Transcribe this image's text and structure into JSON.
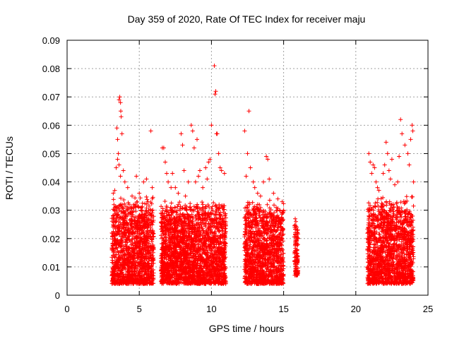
{
  "chart_data": {
    "type": "scatter",
    "title": "Day 359 of 2020, Rate Of TEC Index for receiver maju",
    "xlabel": "GPS time / hours",
    "ylabel": "ROTI / TECUs",
    "xlim": [
      0,
      25
    ],
    "ylim": [
      0,
      0.09
    ],
    "xticks": [
      0,
      5,
      10,
      15,
      20,
      25
    ],
    "xtick_labels": [
      "0",
      "5",
      "10",
      "15",
      "20",
      "25"
    ],
    "yticks": [
      0,
      0.01,
      0.02,
      0.03,
      0.04,
      0.05,
      0.06,
      0.07,
      0.08,
      0.09
    ],
    "ytick_labels": [
      "0",
      "0.01",
      "0.02",
      "0.03",
      "0.04",
      "0.05",
      "0.06",
      "0.07",
      "0.08",
      "0.09"
    ],
    "grid": true,
    "marker": "plus",
    "marker_color": "#ff0000",
    "series": [
      {
        "name": "ROTI",
        "points": [
          [
            3.2,
            0.036
          ],
          [
            3.3,
            0.037
          ],
          [
            3.4,
            0.045
          ],
          [
            3.45,
            0.059
          ],
          [
            3.5,
            0.055
          ],
          [
            3.55,
            0.05
          ],
          [
            3.6,
            0.069
          ],
          [
            3.65,
            0.07
          ],
          [
            3.7,
            0.068
          ],
          [
            3.72,
            0.065
          ],
          [
            3.75,
            0.063
          ],
          [
            3.8,
            0.057
          ],
          [
            3.5,
            0.048
          ],
          [
            3.6,
            0.046
          ],
          [
            3.7,
            0.042
          ],
          [
            3.9,
            0.044
          ],
          [
            4.0,
            0.04
          ],
          [
            4.2,
            0.038
          ],
          [
            4.5,
            0.035
          ],
          [
            4.8,
            0.042
          ],
          [
            5.0,
            0.036
          ],
          [
            5.3,
            0.04
          ],
          [
            5.5,
            0.041
          ],
          [
            5.6,
            0.033
          ],
          [
            5.8,
            0.058
          ],
          [
            5.9,
            0.038
          ],
          [
            3.3,
            0.03
          ],
          [
            3.8,
            0.032
          ],
          [
            4.4,
            0.031
          ],
          [
            5.2,
            0.03
          ],
          [
            6.6,
            0.052
          ],
          [
            6.7,
            0.052
          ],
          [
            6.8,
            0.047
          ],
          [
            6.9,
            0.043
          ],
          [
            7.0,
            0.04
          ],
          [
            7.2,
            0.038
          ],
          [
            7.5,
            0.038
          ],
          [
            7.7,
            0.036
          ],
          [
            7.9,
            0.057
          ],
          [
            8.0,
            0.053
          ],
          [
            8.2,
            0.035
          ],
          [
            8.4,
            0.04
          ],
          [
            8.6,
            0.06
          ],
          [
            8.7,
            0.058
          ],
          [
            8.8,
            0.052
          ],
          [
            9.0,
            0.055
          ],
          [
            9.2,
            0.044
          ],
          [
            9.4,
            0.038
          ],
          [
            9.6,
            0.045
          ],
          [
            9.8,
            0.047
          ],
          [
            9.9,
            0.048
          ],
          [
            10.0,
            0.06
          ],
          [
            10.2,
            0.081
          ],
          [
            10.25,
            0.071
          ],
          [
            10.3,
            0.072
          ],
          [
            10.35,
            0.057
          ],
          [
            10.4,
            0.057
          ],
          [
            10.5,
            0.05
          ],
          [
            10.6,
            0.045
          ],
          [
            10.7,
            0.044
          ],
          [
            10.9,
            0.043
          ],
          [
            7.3,
            0.043
          ],
          [
            8.1,
            0.044
          ],
          [
            9.1,
            0.042
          ],
          [
            9.7,
            0.041
          ],
          [
            8.9,
            0.04
          ],
          [
            12.3,
            0.058
          ],
          [
            12.5,
            0.05
          ],
          [
            12.6,
            0.065
          ],
          [
            12.7,
            0.045
          ],
          [
            12.9,
            0.04
          ],
          [
            13.2,
            0.036
          ],
          [
            13.4,
            0.035
          ],
          [
            13.6,
            0.04
          ],
          [
            13.8,
            0.049
          ],
          [
            13.9,
            0.048
          ],
          [
            14.0,
            0.041
          ],
          [
            14.3,
            0.036
          ],
          [
            14.6,
            0.034
          ],
          [
            14.9,
            0.033
          ],
          [
            15.0,
            0.03
          ],
          [
            12.4,
            0.042
          ],
          [
            13.0,
            0.038
          ],
          [
            15.8,
            0.027
          ],
          [
            15.85,
            0.026
          ],
          [
            15.9,
            0.024
          ],
          [
            15.95,
            0.022
          ],
          [
            15.8,
            0.018
          ],
          [
            15.9,
            0.014
          ],
          [
            15.85,
            0.01
          ],
          [
            15.9,
            0.008
          ],
          [
            15.95,
            0.012
          ],
          [
            20.9,
            0.05
          ],
          [
            21.0,
            0.047
          ],
          [
            21.1,
            0.043
          ],
          [
            21.2,
            0.046
          ],
          [
            21.3,
            0.045
          ],
          [
            21.4,
            0.04
          ],
          [
            21.6,
            0.037
          ],
          [
            21.9,
            0.043
          ],
          [
            22.0,
            0.046
          ],
          [
            22.1,
            0.054
          ],
          [
            22.2,
            0.05
          ],
          [
            22.3,
            0.044
          ],
          [
            22.5,
            0.048
          ],
          [
            22.7,
            0.039
          ],
          [
            22.9,
            0.04
          ],
          [
            23.0,
            0.049
          ],
          [
            23.1,
            0.062
          ],
          [
            23.2,
            0.057
          ],
          [
            23.4,
            0.053
          ],
          [
            23.6,
            0.05
          ],
          [
            23.7,
            0.046
          ],
          [
            23.9,
            0.06
          ],
          [
            23.95,
            0.058
          ],
          [
            24.0,
            0.04
          ],
          [
            23.8,
            0.055
          ],
          [
            22.4,
            0.041
          ],
          [
            21.5,
            0.038
          ]
        ],
        "dense_bands": [
          {
            "x_range": [
              3.1,
              6.0
            ],
            "y_range": [
              0.004,
              0.035
            ],
            "count": 1400
          },
          {
            "x_range": [
              6.5,
              11.0
            ],
            "y_range": [
              0.004,
              0.034
            ],
            "count": 2300
          },
          {
            "x_range": [
              12.3,
              15.0
            ],
            "y_range": [
              0.004,
              0.034
            ],
            "count": 1300
          },
          {
            "x_range": [
              15.75,
              16.0
            ],
            "y_range": [
              0.007,
              0.027
            ],
            "count": 110
          },
          {
            "x_range": [
              20.8,
              24.0
            ],
            "y_range": [
              0.004,
              0.035
            ],
            "count": 1500
          }
        ]
      }
    ]
  }
}
